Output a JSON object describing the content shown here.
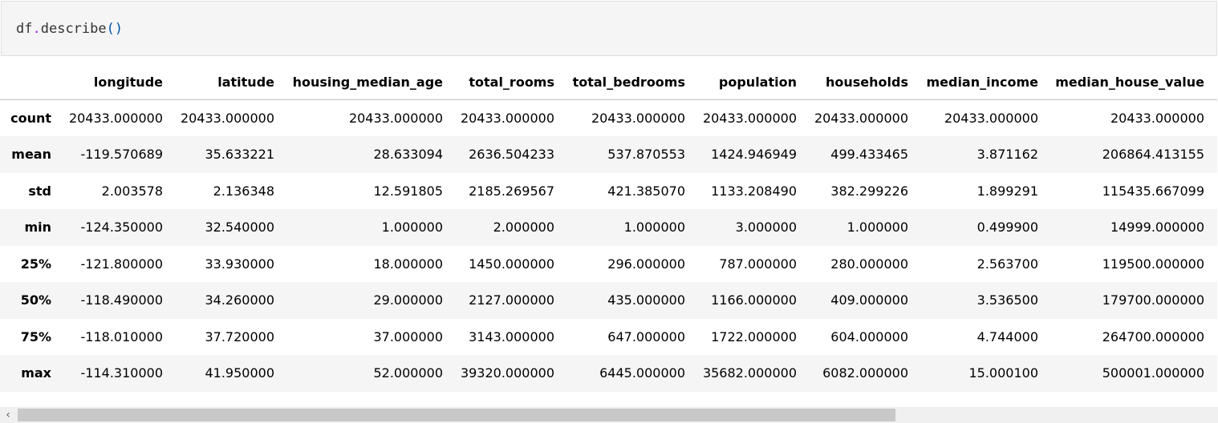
{
  "cell": {
    "code_obj": "df",
    "code_dot": ".",
    "code_fn": "describe",
    "code_parens": "()"
  },
  "table": {
    "columns": [
      "longitude",
      "latitude",
      "housing_median_age",
      "total_rooms",
      "total_bedrooms",
      "population",
      "households",
      "median_income",
      "median_house_value"
    ],
    "rows": [
      {
        "label": "count",
        "values": [
          "20433.000000",
          "20433.000000",
          "20433.000000",
          "20433.000000",
          "20433.000000",
          "20433.000000",
          "20433.000000",
          "20433.000000",
          "20433.000000"
        ]
      },
      {
        "label": "mean",
        "values": [
          "-119.570689",
          "35.633221",
          "28.633094",
          "2636.504233",
          "537.870553",
          "1424.946949",
          "499.433465",
          "3.871162",
          "206864.413155"
        ]
      },
      {
        "label": "std",
        "values": [
          "2.003578",
          "2.136348",
          "12.591805",
          "2185.269567",
          "421.385070",
          "1133.208490",
          "382.299226",
          "1.899291",
          "115435.667099"
        ]
      },
      {
        "label": "min",
        "values": [
          "-124.350000",
          "32.540000",
          "1.000000",
          "2.000000",
          "1.000000",
          "3.000000",
          "1.000000",
          "0.499900",
          "14999.000000"
        ]
      },
      {
        "label": "25%",
        "values": [
          "-121.800000",
          "33.930000",
          "18.000000",
          "1450.000000",
          "296.000000",
          "787.000000",
          "280.000000",
          "2.563700",
          "119500.000000"
        ]
      },
      {
        "label": "50%",
        "values": [
          "-118.490000",
          "34.260000",
          "29.000000",
          "2127.000000",
          "435.000000",
          "1166.000000",
          "409.000000",
          "3.536500",
          "179700.000000"
        ]
      },
      {
        "label": "75%",
        "values": [
          "-118.010000",
          "37.720000",
          "37.000000",
          "3143.000000",
          "647.000000",
          "1722.000000",
          "604.000000",
          "4.744000",
          "264700.000000"
        ]
      },
      {
        "label": "max",
        "values": [
          "-114.310000",
          "41.950000",
          "52.000000",
          "39320.000000",
          "6445.000000",
          "35682.000000",
          "6082.000000",
          "15.000100",
          "500001.000000"
        ]
      }
    ]
  },
  "scrollbar": {
    "left_arrow": "‹"
  }
}
